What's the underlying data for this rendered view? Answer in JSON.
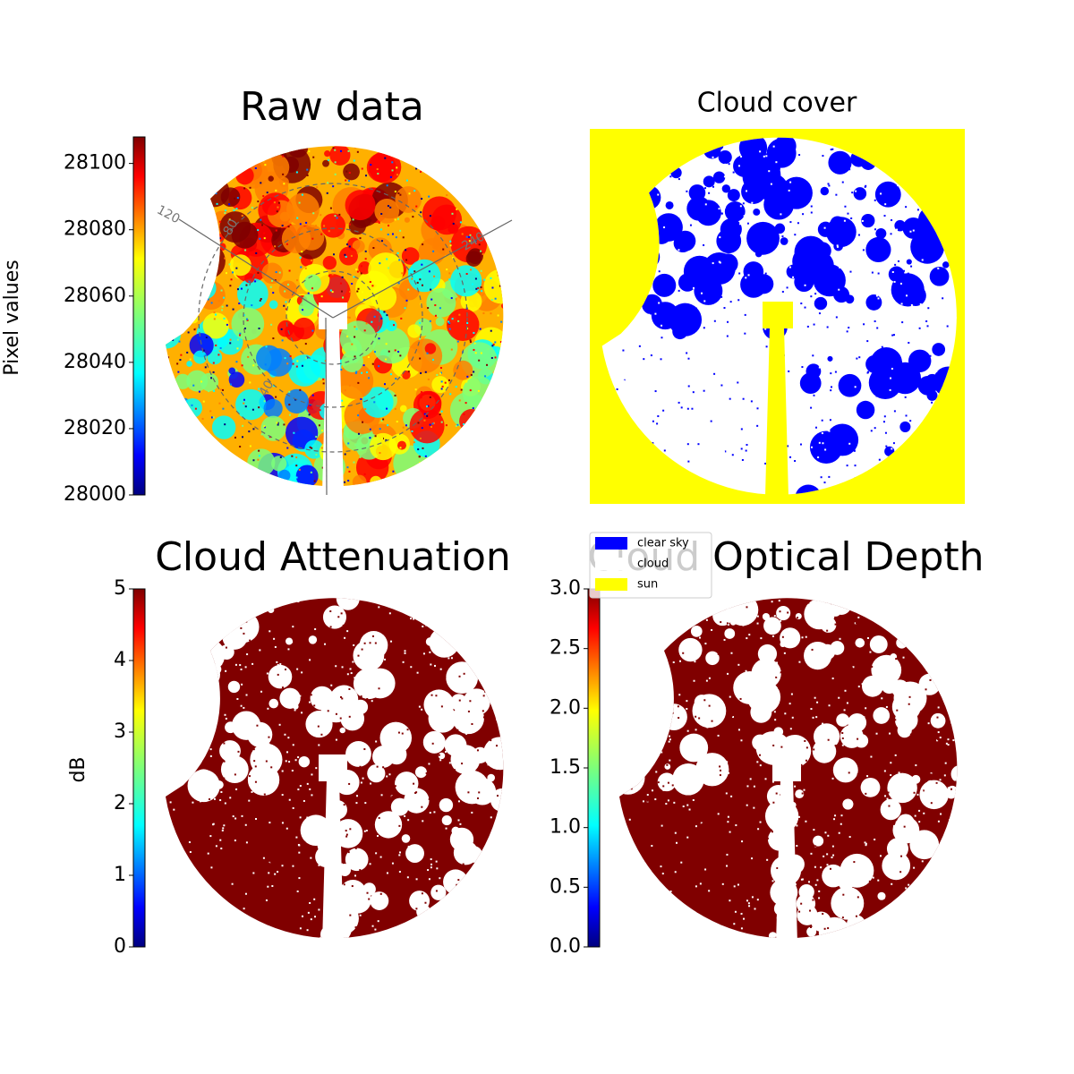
{
  "chart_data": [
    {
      "type": "image",
      "title": "Raw data",
      "colorbar_label": "Pixel values",
      "colormap": "jet",
      "clim": [
        28000,
        28108
      ],
      "cticks": [
        28000,
        28020,
        28040,
        28060,
        28080,
        28100
      ],
      "polar_labels": [
        "120",
        "80",
        "40",
        "240"
      ]
    },
    {
      "type": "categorical_image",
      "title": "Cloud cover",
      "series": [
        {
          "name": "clear sky",
          "color": "#0000ff"
        },
        {
          "name": "cloud",
          "color": "#ffffff"
        },
        {
          "name": "sun",
          "color": "#ffff00"
        }
      ]
    },
    {
      "type": "image",
      "title": "Cloud Attenuation",
      "colorbar_label": "dB",
      "colormap": "jet",
      "clim": [
        0,
        5
      ],
      "cticks": [
        0,
        1,
        2,
        3,
        4,
        5
      ]
    },
    {
      "type": "image",
      "title": "Cloud Optical Depth",
      "colormap": "jet",
      "clim": [
        0,
        3
      ],
      "cticks": [
        {
          "value": 0,
          "label": "0.0"
        },
        0.5,
        {
          "value": 1,
          "label": "1.0"
        },
        1.5,
        {
          "value": 2,
          "label": "2.0"
        },
        2.5,
        {
          "value": 3,
          "label": "3.0"
        }
      ]
    }
  ]
}
